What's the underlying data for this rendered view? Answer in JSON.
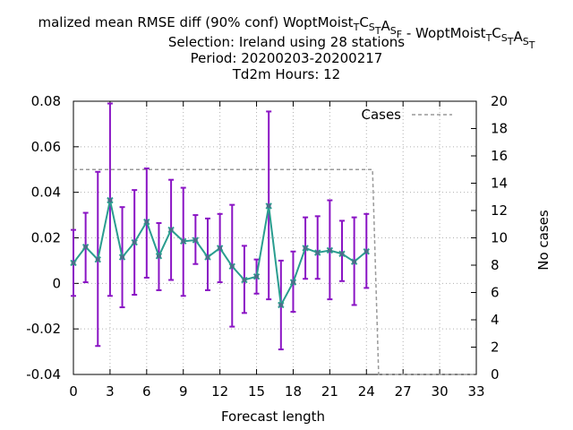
{
  "chart_data": {
    "type": "line",
    "title_lines": [
      "malized mean RMSE diff (90% conf) WoptMoist",
      "Selection: Ireland using    28 stations",
      "Period: 20200203-20200217",
      "Td2m   Hours:  12"
    ],
    "title_part_a": "WoptMoist",
    "title_sep": " - ",
    "title_prefix": "malized mean RMSE diff (90% conf) ",
    "title_sub": [
      {
        "sub": "T",
        "base": ""
      },
      {
        "sub": "S",
        "base": "C"
      },
      {
        "sub": "T",
        "base": ""
      },
      {
        "sub": "S",
        "base": "A"
      },
      {
        "sub": "F",
        "base": ""
      }
    ],
    "title_sub_b": [
      {
        "sub": "T",
        "base": ""
      },
      {
        "sub": "S",
        "base": "C"
      },
      {
        "sub": "T",
        "base": ""
      },
      {
        "sub": "S",
        "base": "A"
      },
      {
        "sub": "T",
        "base": ""
      }
    ],
    "xlabel": "Forecast length",
    "ylabel_left": "",
    "ylabel_right": "No cases",
    "xlim": [
      0,
      33
    ],
    "ylim_left": [
      -0.04,
      0.08
    ],
    "ylim_right": [
      0,
      20
    ],
    "x_ticks": [
      0,
      3,
      6,
      9,
      12,
      15,
      18,
      21,
      24,
      27,
      30,
      33
    ],
    "y_ticks_left": [
      "-0.04",
      "-0.02",
      "0",
      "0.02",
      "0.04",
      "0.06",
      "0.08"
    ],
    "y_ticks_left_values": [
      -0.04,
      -0.02,
      0,
      0.02,
      0.04,
      0.06,
      0.08
    ],
    "y_ticks_right": [
      0,
      2,
      4,
      6,
      8,
      10,
      12,
      14,
      16,
      18,
      20
    ],
    "grid": true,
    "legend": {
      "position": "top-right",
      "entries": [
        "Cases"
      ]
    },
    "series": [
      {
        "values_x": [
          0,
          1,
          2,
          3,
          4,
          5,
          6,
          7,
          8,
          9,
          10,
          11,
          12,
          13,
          14,
          15,
          16,
          17,
          18,
          19,
          20,
          21,
          22,
          23,
          24
        ],
        "values_y": [
          0.009,
          0.016,
          0.0105,
          0.0365,
          0.0115,
          0.018,
          0.027,
          0.012,
          0.0235,
          0.0185,
          0.019,
          0.0115,
          0.0155,
          0.0075,
          0.0015,
          0.003,
          0.034,
          -0.0095,
          0.0005,
          0.0155,
          0.0135,
          0.0145,
          0.013,
          0.0095,
          0.014
        ],
        "err_low": [
          -0.0055,
          0.0005,
          -0.0275,
          -0.0055,
          -0.0105,
          -0.005,
          0.0025,
          -0.003,
          0.0015,
          -0.0055,
          0.0085,
          -0.003,
          0.0005,
          -0.019,
          -0.013,
          -0.0045,
          -0.007,
          -0.029,
          -0.0125,
          0.002,
          0.002,
          -0.007,
          0.001,
          -0.0095,
          -0.002
        ],
        "err_high": [
          0.0235,
          0.031,
          0.049,
          0.079,
          0.0335,
          0.041,
          0.0505,
          0.0265,
          0.0455,
          0.042,
          0.03,
          0.0285,
          0.0305,
          0.0345,
          0.0165,
          0.0105,
          0.0755,
          0.01,
          0.014,
          0.029,
          0.0295,
          0.0365,
          0.0275,
          0.029,
          0.0305
        ],
        "line_color": "#2a9d8f",
        "err_color": "#8a14c4",
        "marker_color": "#2a9d8f"
      },
      {
        "name": "Cases",
        "axis": "right",
        "values_x": [
          0,
          24,
          24.5,
          25,
          33
        ],
        "values_y": [
          15,
          15,
          15,
          0,
          0
        ],
        "line_color": "#999999",
        "dash": "4,3"
      }
    ]
  }
}
